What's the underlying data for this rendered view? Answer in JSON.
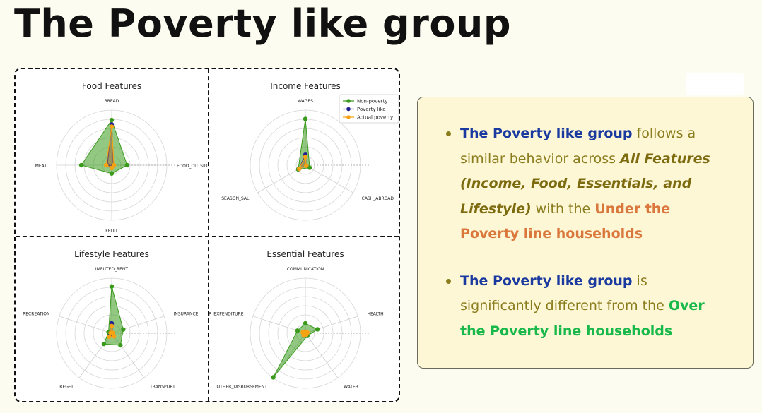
{
  "slide": {
    "title": "The Poverty like group"
  },
  "colors": {
    "non_poverty": "#3a9a1c",
    "poverty_like": "#1f1f8f",
    "actual_poverty": "#f5a312",
    "box_bg": "#fef7d6",
    "text_blue": "#1a3aa0",
    "text_olive": "#8a7d1e",
    "text_orange": "#d9773c",
    "text_green": "#19b84a"
  },
  "legend": {
    "items": [
      "Non-poverty",
      "Poverty like",
      "Actual poverty"
    ],
    "placement": "top-right of Income Features panel"
  },
  "chart_data": [
    {
      "type": "radar",
      "title": "Food Features",
      "axes": [
        "BREAD",
        "MEAT",
        "FRUIT",
        "FOOD_OUTSIDE"
      ],
      "rlim": [
        0,
        1
      ],
      "series": [
        {
          "name": "Non-poverty",
          "values": [
            0.82,
            0.55,
            0.15,
            0.28
          ]
        },
        {
          "name": "Poverty like",
          "values": [
            0.74,
            0.08,
            0.04,
            0.03
          ]
        },
        {
          "name": "Actual poverty",
          "values": [
            0.7,
            0.1,
            0.05,
            0.04
          ]
        }
      ]
    },
    {
      "type": "radar",
      "title": "Income Features",
      "axes": [
        "WAGES",
        "SEASON_SAL",
        "CASH_ABROAD"
      ],
      "rlim": [
        0,
        1
      ],
      "series": [
        {
          "name": "Non-poverty",
          "values": [
            0.84,
            0.15,
            0.09
          ]
        },
        {
          "name": "Poverty like",
          "values": [
            0.19,
            0.13,
            0.02
          ]
        },
        {
          "name": "Actual poverty",
          "values": [
            0.15,
            0.13,
            0.02
          ]
        }
      ]
    },
    {
      "type": "radar",
      "title": "Lifestyle Features",
      "axes": [
        "IMPUTED_RENT",
        "RECREATION",
        "REGFT",
        "TRANSPORT",
        "INSURANCE"
      ],
      "rlim": [
        0,
        1
      ],
      "series": [
        {
          "name": "Non-poverty",
          "values": [
            0.85,
            0.06,
            0.24,
            0.27,
            0.22
          ]
        },
        {
          "name": "Poverty like",
          "values": [
            0.18,
            0.02,
            0.06,
            0.06,
            0.02
          ]
        },
        {
          "name": "Actual poverty",
          "values": [
            0.13,
            0.02,
            0.08,
            0.07,
            0.02
          ]
        }
      ]
    },
    {
      "type": "radar",
      "title": "Essential Features",
      "axes": [
        "COMMUNICATION",
        "R_EXPENDITURE",
        "OTHER_DISBURSEMENT",
        "WATER",
        "HEALTH"
      ],
      "rlim": [
        0,
        1
      ],
      "series": [
        {
          "name": "Non-poverty",
          "values": [
            0.18,
            0.15,
            0.99,
            0.06,
            0.23
          ]
        },
        {
          "name": "Poverty like",
          "values": [
            0.03,
            0.04,
            0.05,
            0.03,
            0.03
          ]
        },
        {
          "name": "Actual poverty",
          "values": [
            0.03,
            0.05,
            0.05,
            0.03,
            0.04
          ]
        }
      ]
    }
  ],
  "bullets": [
    {
      "b1_part1": "The Poverty like group",
      "b1_part2": " follows a similar behavior across ",
      "b1_part3": "All Features (Income, Food, Essentials, and Lifestyle)",
      "b1_part4": " with the ",
      "b1_part5": "Under the Poverty line households"
    },
    {
      "b2_part1": "The Poverty like group",
      "b2_part2": " is significantly different from the ",
      "b2_part3": "Over the Poverty line households"
    }
  ]
}
